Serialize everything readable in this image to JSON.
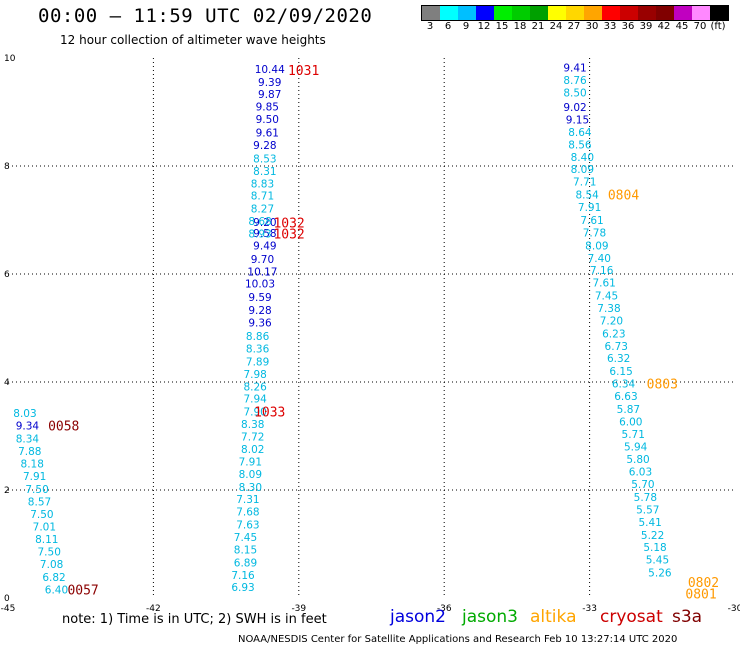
{
  "header": {
    "title": "00:00 – 11:59 UTC 02/09/2020",
    "subtitle": "12 hour collection of altimeter wave heights"
  },
  "scale": {
    "colors": [
      "#7f7f7f",
      "#00ffff",
      "#00bfff",
      "#0000ff",
      "#00ee00",
      "#00cc00",
      "#00a000",
      "#ffff00",
      "#ffd700",
      "#ffa500",
      "#ff0000",
      "#cc0000",
      "#990000",
      "#800000",
      "#c000c0",
      "#ff88ff",
      "#000000"
    ],
    "labels": [
      "3",
      "6",
      "9",
      "12",
      "15",
      "18",
      "21",
      "24",
      "27",
      "30",
      "33",
      "36",
      "39",
      "42",
      "45",
      "70",
      "(ft)"
    ]
  },
  "note": "note: 1) Time is in UTC; 2) SWH is in feet",
  "legend": [
    {
      "name": "jason2",
      "color": "#0000dd"
    },
    {
      "name": "jason3",
      "color": "#00aa00"
    },
    {
      "name": "altika",
      "color": "#ffa500"
    },
    {
      "name": "cryosat",
      "color": "#cc0000"
    },
    {
      "name": "s3a",
      "color": "#800000"
    }
  ],
  "footer": "NOAA/NESDIS Center for Satellite Applications and Research    Feb 10 13:27:14 UTC 2020",
  "chart_data": {
    "type": "scatter",
    "xlim": [
      -45,
      -30
    ],
    "ylim": [
      0,
      10
    ],
    "x_ticks": [
      "-45",
      "-42",
      "-39",
      "-36",
      "-33",
      "-30"
    ],
    "y_ticks": [
      "0",
      "2",
      "4",
      "6",
      "8",
      "10"
    ],
    "grid": true,
    "series": [
      {
        "name": "jason2",
        "color": "#0000cc",
        "points": [
          {
            "x": -39.6,
            "y": 9.8,
            "label": "10.44"
          },
          {
            "x": -39.6,
            "y": 9.56,
            "label": "9.39"
          },
          {
            "x": -39.6,
            "y": 9.33,
            "label": "9.87"
          },
          {
            "x": -39.65,
            "y": 9.1,
            "label": "9.85"
          },
          {
            "x": -39.65,
            "y": 8.87,
            "label": "9.50"
          },
          {
            "x": -39.65,
            "y": 8.62,
            "label": "9.61"
          },
          {
            "x": -39.7,
            "y": 8.39,
            "label": "9.28"
          },
          {
            "x": -39.7,
            "y": 6.96,
            "label": "9.20"
          },
          {
            "x": -39.7,
            "y": 6.76,
            "label": "9.58"
          },
          {
            "x": -39.7,
            "y": 6.53,
            "label": "9.49"
          },
          {
            "x": -39.75,
            "y": 6.28,
            "label": "9.70"
          },
          {
            "x": -39.75,
            "y": 6.05,
            "label": "10.17"
          },
          {
            "x": -39.8,
            "y": 5.82,
            "label": "10.03"
          },
          {
            "x": -39.8,
            "y": 5.57,
            "label": "9.59"
          },
          {
            "x": -39.8,
            "y": 5.33,
            "label": "9.28"
          },
          {
            "x": -39.8,
            "y": 5.1,
            "label": "9.36"
          },
          {
            "x": -44.6,
            "y": 3.19,
            "label": "9.34"
          },
          {
            "x": -33.3,
            "y": 9.82,
            "label": "9.41"
          },
          {
            "x": -33.3,
            "y": 9.09,
            "label": "9.02"
          },
          {
            "x": -33.25,
            "y": 8.86,
            "label": "9.15"
          }
        ]
      },
      {
        "name": "altika",
        "color": "#00b8e0",
        "points": [
          {
            "x": -39.7,
            "y": 8.14,
            "label": "8.53"
          },
          {
            "x": -39.7,
            "y": 7.91,
            "label": "8.31"
          },
          {
            "x": -39.75,
            "y": 7.68,
            "label": "8.83"
          },
          {
            "x": -39.75,
            "y": 7.45,
            "label": "8.71"
          },
          {
            "x": -39.75,
            "y": 7.21,
            "label": "8.27"
          },
          {
            "x": -39.8,
            "y": 6.98,
            "label": "8.68"
          },
          {
            "x": -39.8,
            "y": 6.75,
            "label": "8.93"
          },
          {
            "x": -39.85,
            "y": 4.85,
            "label": "8.86"
          },
          {
            "x": -39.85,
            "y": 4.62,
            "label": "8.36"
          },
          {
            "x": -39.85,
            "y": 4.38,
            "label": "7.89"
          },
          {
            "x": -39.9,
            "y": 4.15,
            "label": "7.98"
          },
          {
            "x": -39.9,
            "y": 3.92,
            "label": "8.26"
          },
          {
            "x": -39.9,
            "y": 3.69,
            "label": "7.94"
          },
          {
            "x": -39.9,
            "y": 3.45,
            "label": "7.90"
          },
          {
            "x": -39.95,
            "y": 3.22,
            "label": "8.38"
          },
          {
            "x": -39.95,
            "y": 2.99,
            "label": "7.72"
          },
          {
            "x": -39.95,
            "y": 2.76,
            "label": "8.02"
          },
          {
            "x": -40.0,
            "y": 2.53,
            "label": "7.91"
          },
          {
            "x": -40.0,
            "y": 2.3,
            "label": "8.09"
          },
          {
            "x": -40.0,
            "y": 2.06,
            "label": "8.30"
          },
          {
            "x": -40.05,
            "y": 1.83,
            "label": "7.31"
          },
          {
            "x": -40.05,
            "y": 1.6,
            "label": "7.68"
          },
          {
            "x": -40.05,
            "y": 1.36,
            "label": "7.63"
          },
          {
            "x": -40.1,
            "y": 1.13,
            "label": "7.45"
          },
          {
            "x": -40.1,
            "y": 0.9,
            "label": "8.15"
          },
          {
            "x": -40.1,
            "y": 0.66,
            "label": "6.89"
          },
          {
            "x": -40.15,
            "y": 0.43,
            "label": "7.16"
          },
          {
            "x": -40.15,
            "y": 0.2,
            "label": "6.93"
          },
          {
            "x": -44.65,
            "y": 3.43,
            "label": "8.03"
          },
          {
            "x": -44.6,
            "y": 2.95,
            "label": "8.34"
          },
          {
            "x": -44.55,
            "y": 2.72,
            "label": "7.88"
          },
          {
            "x": -44.5,
            "y": 2.49,
            "label": "8.18"
          },
          {
            "x": -44.45,
            "y": 2.26,
            "label": "7.91"
          },
          {
            "x": -44.4,
            "y": 2.02,
            "label": "7.50"
          },
          {
            "x": -44.35,
            "y": 1.79,
            "label": "8.57"
          },
          {
            "x": -44.3,
            "y": 1.56,
            "label": "7.50"
          },
          {
            "x": -44.25,
            "y": 1.32,
            "label": "7.01"
          },
          {
            "x": -44.2,
            "y": 1.09,
            "label": "8.11"
          },
          {
            "x": -44.15,
            "y": 0.86,
            "label": "7.50"
          },
          {
            "x": -44.1,
            "y": 0.63,
            "label": "7.08"
          },
          {
            "x": -44.05,
            "y": 0.39,
            "label": "6.82"
          },
          {
            "x": -44.0,
            "y": 0.16,
            "label": "6.40"
          },
          {
            "x": -33.3,
            "y": 9.59,
            "label": "8.76"
          },
          {
            "x": -33.3,
            "y": 9.36,
            "label": "8.50"
          },
          {
            "x": -33.2,
            "y": 8.63,
            "label": "8.64"
          },
          {
            "x": -33.2,
            "y": 8.4,
            "label": "8.56"
          },
          {
            "x": -33.15,
            "y": 8.17,
            "label": "8.40"
          },
          {
            "x": -33.15,
            "y": 7.94,
            "label": "8.09"
          },
          {
            "x": -33.1,
            "y": 7.71,
            "label": "7.71"
          },
          {
            "x": -33.05,
            "y": 7.47,
            "label": "8.54"
          },
          {
            "x": -33.0,
            "y": 7.24,
            "label": "7.91"
          },
          {
            "x": -32.95,
            "y": 7.0,
            "label": "7.61"
          },
          {
            "x": -32.9,
            "y": 6.77,
            "label": "7.78"
          },
          {
            "x": -32.85,
            "y": 6.53,
            "label": "8.09"
          },
          {
            "x": -32.8,
            "y": 6.3,
            "label": "7.40"
          },
          {
            "x": -32.75,
            "y": 6.07,
            "label": "7.16"
          },
          {
            "x": -32.7,
            "y": 5.84,
            "label": "7.61"
          },
          {
            "x": -32.65,
            "y": 5.6,
            "label": "7.45"
          },
          {
            "x": -32.6,
            "y": 5.37,
            "label": "7.38"
          },
          {
            "x": -32.55,
            "y": 5.14,
            "label": "7.20"
          },
          {
            "x": -32.5,
            "y": 4.9,
            "label": "6.23"
          },
          {
            "x": -32.45,
            "y": 4.67,
            "label": "6.73"
          },
          {
            "x": -32.4,
            "y": 4.44,
            "label": "6.32"
          },
          {
            "x": -32.35,
            "y": 4.2,
            "label": "6.15"
          },
          {
            "x": -32.3,
            "y": 3.97,
            "label": "6.34"
          },
          {
            "x": -32.25,
            "y": 3.74,
            "label": "6.63"
          },
          {
            "x": -32.2,
            "y": 3.5,
            "label": "5.87"
          },
          {
            "x": -32.15,
            "y": 3.27,
            "label": "6.00"
          },
          {
            "x": -32.1,
            "y": 3.04,
            "label": "5.71"
          },
          {
            "x": -32.05,
            "y": 2.81,
            "label": "5.94"
          },
          {
            "x": -32.0,
            "y": 2.57,
            "label": "5.80"
          },
          {
            "x": -31.95,
            "y": 2.34,
            "label": "6.03"
          },
          {
            "x": -31.9,
            "y": 2.11,
            "label": "5.70"
          },
          {
            "x": -31.85,
            "y": 1.87,
            "label": "5.78"
          },
          {
            "x": -31.8,
            "y": 1.64,
            "label": "5.57"
          },
          {
            "x": -31.75,
            "y": 1.41,
            "label": "5.41"
          },
          {
            "x": -31.7,
            "y": 1.17,
            "label": "5.22"
          },
          {
            "x": -31.65,
            "y": 0.94,
            "label": "5.18"
          },
          {
            "x": -31.6,
            "y": 0.71,
            "label": "5.45"
          },
          {
            "x": -31.55,
            "y": 0.47,
            "label": "5.26"
          }
        ]
      }
    ],
    "time_labels": [
      {
        "x": -38.9,
        "y": 9.78,
        "label": "1031",
        "color": "#dd0000"
      },
      {
        "x": -39.2,
        "y": 6.95,
        "label": "1032",
        "color": "#dd0000"
      },
      {
        "x": -39.2,
        "y": 6.75,
        "label": "1032",
        "color": "#dd0000"
      },
      {
        "x": -39.6,
        "y": 3.45,
        "label": "1033",
        "color": "#dd0000"
      },
      {
        "x": -43.85,
        "y": 3.19,
        "label": "0058",
        "color": "#8b0000"
      },
      {
        "x": -43.45,
        "y": 0.16,
        "label": "0057",
        "color": "#8b0000"
      },
      {
        "x": -32.3,
        "y": 7.47,
        "label": "0804",
        "color": "#ff9900"
      },
      {
        "x": -31.5,
        "y": 3.97,
        "label": "0803",
        "color": "#ff9900"
      },
      {
        "x": -30.65,
        "y": 0.3,
        "label": "0802",
        "color": "#ff9900"
      },
      {
        "x": -30.7,
        "y": 0.08,
        "label": "0801",
        "color": "#ff9900"
      }
    ]
  }
}
